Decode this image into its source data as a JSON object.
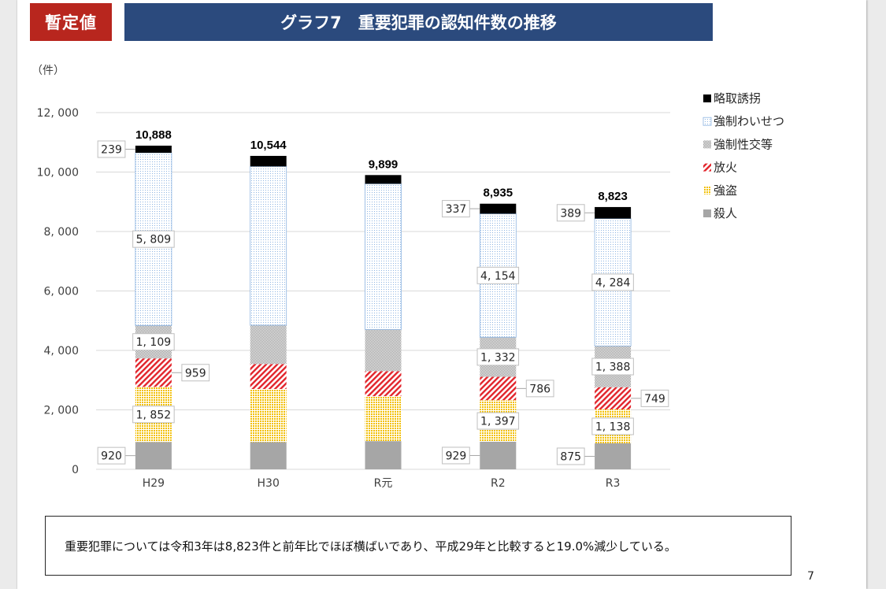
{
  "header": {
    "badge": "暫定値"
  },
  "colors": {
    "badge_background": "#b8261e",
    "title_background": "#2b4a7d",
    "gridline": "#d9d9d9",
    "label_border": "#bfbfbf",
    "leader_line": "#a6a6a6"
  },
  "chart_data": {
    "type": "bar",
    "stacked": true,
    "title": "グラフ7　重要犯罪の認知件数の推移",
    "ylabel": "（件）",
    "categories": [
      "H29",
      "H30",
      "R元",
      "R2",
      "R3"
    ],
    "ylim": [
      0,
      12000
    ],
    "yticks": [
      0,
      2000,
      4000,
      6000,
      8000,
      10000,
      12000
    ],
    "ytick_labels": [
      "0",
      "2, 000",
      "4, 000",
      "6, 000",
      "8, 000",
      "10, 000",
      "12, 000"
    ],
    "grid": true,
    "legend_position": "top-right",
    "series": [
      {
        "name": "殺人",
        "values": [
          920,
          915,
          950,
          929,
          875
        ],
        "labels": [
          "920",
          null,
          null,
          "929",
          "875"
        ],
        "label_position": "left",
        "pattern": "solid",
        "color": "#a6a6a6"
      },
      {
        "name": "強盗",
        "values": [
          1852,
          1787,
          1511,
          1397,
          1138
        ],
        "labels": [
          "1, 852",
          null,
          null,
          "1, 397",
          "1, 138"
        ],
        "label_position": "inside",
        "pattern": "grid",
        "color": "#f2bf00"
      },
      {
        "name": "放火",
        "values": [
          959,
          840,
          840,
          786,
          749
        ],
        "labels": [
          "959",
          null,
          null,
          "786",
          "749"
        ],
        "label_position": "right",
        "pattern": "hatch",
        "color": "#e2242b"
      },
      {
        "name": "強制性交等",
        "values": [
          1109,
          1307,
          1405,
          1332,
          1388
        ],
        "labels": [
          "1, 109",
          null,
          null,
          "1, 332",
          "1, 388"
        ],
        "label_position": "inside",
        "pattern": "checker",
        "color": "#8c8c8c"
      },
      {
        "name": "強制わいせつ",
        "values": [
          5809,
          5340,
          4900,
          4154,
          4284
        ],
        "labels": [
          "5, 809",
          null,
          null,
          "4, 154",
          "4, 284"
        ],
        "label_position": "inside",
        "pattern": "dots",
        "color": "#8db4e2"
      },
      {
        "name": "略取誘拐",
        "values": [
          239,
          355,
          293,
          337,
          389
        ],
        "labels": [
          "239",
          null,
          null,
          "337",
          "389"
        ],
        "label_position": "left",
        "pattern": "solid",
        "color": "#000000"
      }
    ],
    "totals": [
      10888,
      10544,
      9899,
      8935,
      8823
    ],
    "total_labels": [
      "10,888",
      "10,544",
      "9,899",
      "8,935",
      "8,823"
    ]
  },
  "summary": {
    "text": "重要犯罪については令和3年は8,823件と前年比でほぼ横ばいであり、平成29年と比較すると19.0%減少している。"
  },
  "page_number": "7"
}
